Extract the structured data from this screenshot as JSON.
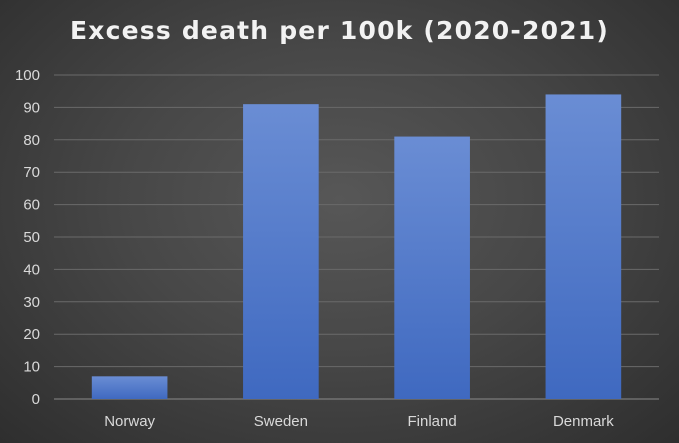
{
  "chart_data": {
    "type": "bar",
    "title": "Excess death per 100k (2020-2021)",
    "categories": [
      "Norway",
      "Sweden",
      "Finland",
      "Denmark"
    ],
    "values": [
      7,
      91,
      81,
      94
    ],
    "ylim": [
      0,
      100
    ],
    "yticks": [
      0,
      10,
      20,
      30,
      40,
      50,
      60,
      70,
      80,
      90,
      100
    ],
    "grid": true,
    "legend": "none",
    "colors": {
      "bar_top": "#6a8dd4",
      "bar_bottom": "#3f69c0",
      "background": "#474747",
      "gridline": "#6a6a6a",
      "text": "#d9d9d9"
    }
  }
}
